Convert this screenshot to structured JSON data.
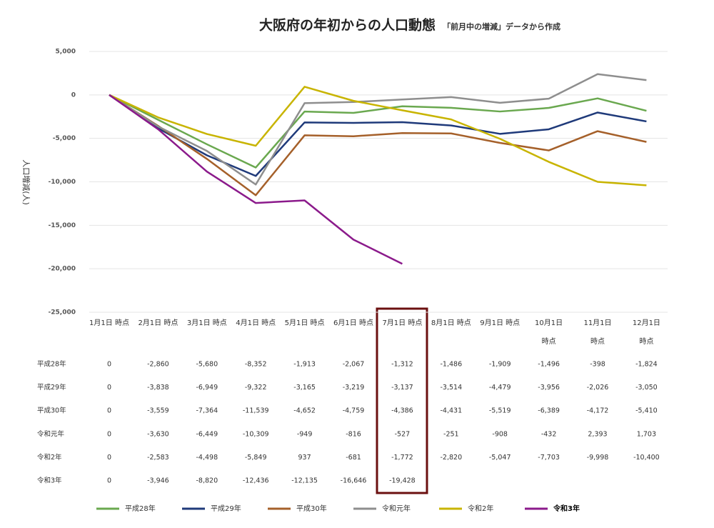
{
  "chart_data": {
    "type": "line",
    "title": "大阪府の年初からの人口動態",
    "subtitle": "「前月中の増減」データから作成",
    "ylabel": "人口増減(人)",
    "categories": [
      "1月1日 時点",
      "2月1日 時点",
      "3月1日 時点",
      "4月1日 時点",
      "5月1日 時点",
      "6月1日 時点",
      "7月1日 時点",
      "8月1日 時点",
      "9月1日 時点",
      "10月1日 時点",
      "11月1日 時点",
      "12月1日 時点"
    ],
    "ylim": [
      -25000,
      5000
    ],
    "yticks": [
      {
        "value": 5000,
        "label": "5,000"
      },
      0,
      {
        "value": -5000,
        "label": "-5,000"
      },
      {
        "value": -10000,
        "label": "-10,000"
      },
      {
        "value": -15000,
        "label": "-15,000"
      },
      {
        "value": -20000,
        "label": "-20,000"
      },
      {
        "value": -25000,
        "label": "-25,000"
      }
    ],
    "grid": true,
    "legend": "bottom",
    "series": [
      {
        "name": "平成28年",
        "color": "#6aa84f",
        "values": [
          0,
          -2860,
          -5680,
          -8352,
          -1913,
          -2067,
          -1312,
          -1486,
          -1909,
          -1496,
          -398,
          -1824
        ],
        "value_labels": [
          "0",
          "-2,860",
          "-5,680",
          "-8,352",
          "-1,913",
          "-2,067",
          "-1,312",
          "-1,486",
          "-1,909",
          "-1,496",
          "-398",
          "-1,824"
        ]
      },
      {
        "name": "平成29年",
        "color": "#1f3a7a",
        "values": [
          0,
          -3838,
          -6949,
          -9322,
          -3165,
          -3219,
          -3137,
          -3514,
          -4479,
          -3956,
          -2026,
          -3050
        ],
        "value_labels": [
          "0",
          "-3,838",
          "-6,949",
          "-9,322",
          "-3,165",
          "-3,219",
          "-3,137",
          "-3,514",
          "-4,479",
          "-3,956",
          "-2,026",
          "-3,050"
        ]
      },
      {
        "name": "平成30年",
        "color": "#a5602a",
        "values": [
          0,
          -3559,
          -7364,
          -11539,
          -4652,
          -4759,
          -4386,
          -4431,
          -5519,
          -6389,
          -4172,
          -5410
        ],
        "value_labels": [
          "0",
          "-3,559",
          "-7,364",
          "-11,539",
          "-4,652",
          "-4,759",
          "-4,386",
          "-4,431",
          "-5,519",
          "-6,389",
          "-4,172",
          "-5,410"
        ]
      },
      {
        "name": "令和元年",
        "color": "#8e8e8e",
        "values": [
          0,
          -3630,
          -6449,
          -10309,
          -949,
          -816,
          -527,
          -251,
          -908,
          -432,
          2393,
          1703
        ],
        "value_labels": [
          "0",
          "-3,630",
          "-6,449",
          "-10,309",
          "-949",
          "-816",
          "-527",
          "-251",
          "-908",
          "-432",
          "2,393",
          "1,703"
        ]
      },
      {
        "name": "令和2年",
        "color": "#c8b400",
        "values": [
          0,
          -2583,
          -4498,
          -5849,
          937,
          -681,
          -1772,
          -2820,
          -5047,
          -7703,
          -9998,
          -10400
        ],
        "value_labels": [
          "0",
          "-2,583",
          "-4,498",
          "-5,849",
          "937",
          "-681",
          "-1,772",
          "-2,820",
          "-5,047",
          "-7,703",
          "-9,998",
          "-10,400"
        ]
      },
      {
        "name": "令和3年",
        "color": "#8b1a8b",
        "values": [
          0,
          -3946,
          -8820,
          -12436,
          -12135,
          -16646,
          -19428,
          null,
          null,
          null,
          null,
          null
        ],
        "value_labels": [
          "0",
          "-3,946",
          "-8,820",
          "-12,436",
          "-12,135",
          "-16,646",
          "-19,428",
          null,
          null,
          null,
          null,
          null
        ]
      }
    ]
  }
}
